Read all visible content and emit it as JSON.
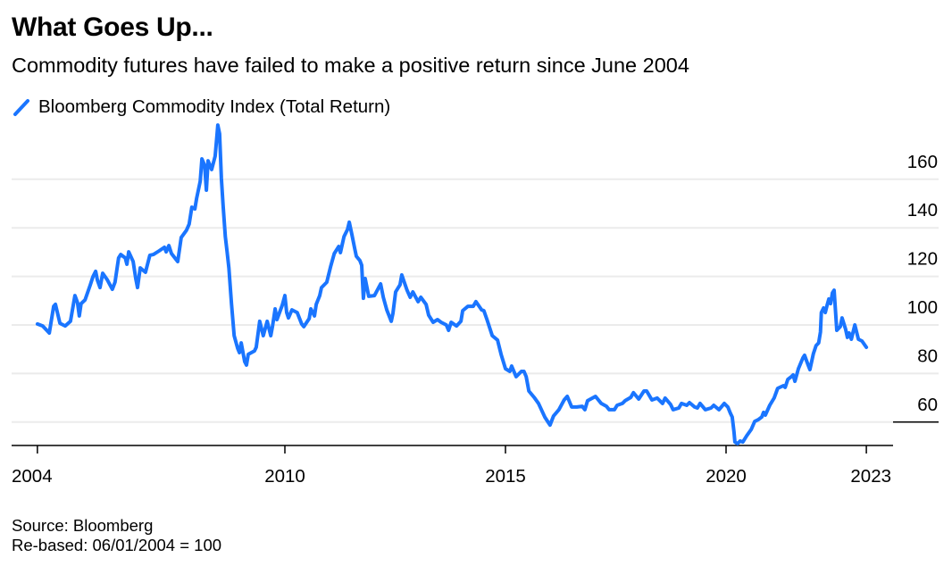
{
  "header": {
    "title": "What Goes Up...",
    "subtitle": "Commodity futures have failed to make a positive return since June 2004"
  },
  "footer": {
    "source": "Source: Bloomberg",
    "note": "Re-based: 06/01/2004 = 100"
  },
  "colors": {
    "series": "#1a75ff",
    "grid": "#ebebeb",
    "axis": "#000000"
  },
  "chart_data": {
    "type": "line",
    "title": "What Goes Up...",
    "subtitle": "Commodity futures have failed to make a positive return since June 2004",
    "xlabel": "",
    "ylabel": "",
    "legend": {
      "position": "top-left",
      "entries": [
        "Bloomberg Commodity Index (Total Return)"
      ]
    },
    "grid": true,
    "y_axis": {
      "side": "right",
      "ticks": [
        60,
        80,
        100,
        120,
        140,
        160
      ],
      "ylim": [
        50.8,
        182.3
      ]
    },
    "x_axis": {
      "ticks": [
        {
          "label": "2004",
          "value": 2004.39
        },
        {
          "label": "2010",
          "value": 2010.0
        },
        {
          "label": "2015",
          "value": 2015.0
        },
        {
          "label": "2020",
          "value": 2020.0
        },
        {
          "label": "2023",
          "value": 2023.18
        }
      ],
      "xlim": [
        2003.6,
        2023.6
      ]
    },
    "series": [
      {
        "name": "Bloomberg Commodity Index (Total Return)",
        "points": [
          [
            2004.39,
            100.4
          ],
          [
            2004.51,
            99.6
          ],
          [
            2004.66,
            96.7
          ],
          [
            2004.76,
            107.7
          ],
          [
            2004.8,
            108.5
          ],
          [
            2004.9,
            100.7
          ],
          [
            2005.02,
            99.6
          ],
          [
            2005.14,
            101.5
          ],
          [
            2005.24,
            112.1
          ],
          [
            2005.3,
            109.2
          ],
          [
            2005.34,
            103.7
          ],
          [
            2005.38,
            108.8
          ],
          [
            2005.47,
            110.3
          ],
          [
            2005.59,
            116.5
          ],
          [
            2005.65,
            119.9
          ],
          [
            2005.71,
            122.1
          ],
          [
            2005.75,
            118.4
          ],
          [
            2005.81,
            115.4
          ],
          [
            2005.87,
            121.3
          ],
          [
            2005.97,
            118.7
          ],
          [
            2006.09,
            114.7
          ],
          [
            2006.15,
            117.6
          ],
          [
            2006.23,
            127.6
          ],
          [
            2006.28,
            129.0
          ],
          [
            2006.38,
            127.6
          ],
          [
            2006.42,
            125.0
          ],
          [
            2006.46,
            130.1
          ],
          [
            2006.56,
            126.1
          ],
          [
            2006.62,
            119.1
          ],
          [
            2006.66,
            115.4
          ],
          [
            2006.72,
            123.5
          ],
          [
            2006.84,
            121.7
          ],
          [
            2006.94,
            128.7
          ],
          [
            2007.02,
            129.0
          ],
          [
            2007.15,
            130.5
          ],
          [
            2007.27,
            132.0
          ],
          [
            2007.31,
            130.1
          ],
          [
            2007.37,
            132.7
          ],
          [
            2007.43,
            129.4
          ],
          [
            2007.57,
            126.1
          ],
          [
            2007.61,
            130.9
          ],
          [
            2007.65,
            136.0
          ],
          [
            2007.77,
            139.0
          ],
          [
            2007.83,
            141.5
          ],
          [
            2007.89,
            148.5
          ],
          [
            2007.96,
            147.8
          ],
          [
            2008.0,
            152.2
          ],
          [
            2008.08,
            159.2
          ],
          [
            2008.12,
            168.4
          ],
          [
            2008.18,
            165.8
          ],
          [
            2008.22,
            155.5
          ],
          [
            2008.26,
            167.6
          ],
          [
            2008.34,
            164.0
          ],
          [
            2008.42,
            169.5
          ],
          [
            2008.46,
            177.9
          ],
          [
            2008.48,
            182.3
          ],
          [
            2008.52,
            178.7
          ],
          [
            2008.56,
            160.3
          ],
          [
            2008.6,
            149.3
          ],
          [
            2008.65,
            136.4
          ],
          [
            2008.69,
            130.1
          ],
          [
            2008.73,
            123.5
          ],
          [
            2008.79,
            108.8
          ],
          [
            2008.85,
            95.6
          ],
          [
            2008.93,
            90.4
          ],
          [
            2008.97,
            88.6
          ],
          [
            2009.01,
            92.6
          ],
          [
            2009.09,
            84.9
          ],
          [
            2009.13,
            83.5
          ],
          [
            2009.17,
            87.9
          ],
          [
            2009.31,
            89.3
          ],
          [
            2009.35,
            90.8
          ],
          [
            2009.43,
            101.5
          ],
          [
            2009.51,
            95.6
          ],
          [
            2009.6,
            101.5
          ],
          [
            2009.68,
            95.6
          ],
          [
            2009.72,
            99.6
          ],
          [
            2009.78,
            106.6
          ],
          [
            2009.82,
            102.2
          ],
          [
            2009.94,
            108.1
          ],
          [
            2010.0,
            112.1
          ],
          [
            2010.04,
            105.1
          ],
          [
            2010.08,
            102.9
          ],
          [
            2010.16,
            106.2
          ],
          [
            2010.28,
            105.1
          ],
          [
            2010.38,
            100.4
          ],
          [
            2010.43,
            99.3
          ],
          [
            2010.55,
            102.6
          ],
          [
            2010.59,
            106.6
          ],
          [
            2010.67,
            103.7
          ],
          [
            2010.71,
            108.5
          ],
          [
            2010.79,
            112.1
          ],
          [
            2010.83,
            115.4
          ],
          [
            2010.95,
            117.6
          ],
          [
            2011.04,
            124.3
          ],
          [
            2011.12,
            129.4
          ],
          [
            2011.22,
            132.3
          ],
          [
            2011.26,
            129.8
          ],
          [
            2011.34,
            136.4
          ],
          [
            2011.42,
            139.3
          ],
          [
            2011.46,
            142.3
          ],
          [
            2011.52,
            137.1
          ],
          [
            2011.58,
            131.6
          ],
          [
            2011.62,
            128.3
          ],
          [
            2011.7,
            126.5
          ],
          [
            2011.74,
            124.6
          ],
          [
            2011.78,
            111.0
          ],
          [
            2011.82,
            119.1
          ],
          [
            2011.9,
            111.8
          ],
          [
            2012.03,
            112.1
          ],
          [
            2012.17,
            116.9
          ],
          [
            2012.23,
            111.4
          ],
          [
            2012.31,
            106.2
          ],
          [
            2012.41,
            101.5
          ],
          [
            2012.45,
            104.8
          ],
          [
            2012.51,
            113.6
          ],
          [
            2012.61,
            116.5
          ],
          [
            2012.65,
            120.6
          ],
          [
            2012.77,
            114.3
          ],
          [
            2012.84,
            111.4
          ],
          [
            2012.9,
            113.6
          ],
          [
            2013.02,
            109.6
          ],
          [
            2013.08,
            111.4
          ],
          [
            2013.2,
            108.5
          ],
          [
            2013.26,
            104.0
          ],
          [
            2013.36,
            101.1
          ],
          [
            2013.46,
            102.2
          ],
          [
            2013.54,
            101.1
          ],
          [
            2013.66,
            100.0
          ],
          [
            2013.71,
            97.8
          ],
          [
            2013.77,
            101.1
          ],
          [
            2013.89,
            99.6
          ],
          [
            2013.99,
            101.5
          ],
          [
            2014.03,
            105.9
          ],
          [
            2014.15,
            107.7
          ],
          [
            2014.27,
            107.7
          ],
          [
            2014.33,
            109.6
          ],
          [
            2014.46,
            106.2
          ],
          [
            2014.51,
            105.9
          ],
          [
            2014.58,
            102.2
          ],
          [
            2014.7,
            95.6
          ],
          [
            2014.82,
            93.8
          ],
          [
            2014.9,
            87.9
          ],
          [
            2015.0,
            82.0
          ],
          [
            2015.1,
            80.9
          ],
          [
            2015.14,
            83.1
          ],
          [
            2015.24,
            78.7
          ],
          [
            2015.36,
            80.9
          ],
          [
            2015.42,
            80.9
          ],
          [
            2015.47,
            78.7
          ],
          [
            2015.53,
            72.8
          ],
          [
            2015.65,
            70.2
          ],
          [
            2015.75,
            67.7
          ],
          [
            2015.89,
            62.1
          ],
          [
            2015.97,
            59.9
          ],
          [
            2016.01,
            58.8
          ],
          [
            2016.09,
            62.5
          ],
          [
            2016.21,
            65.1
          ],
          [
            2016.33,
            69.1
          ],
          [
            2016.4,
            70.6
          ],
          [
            2016.5,
            66.2
          ],
          [
            2016.62,
            66.2
          ],
          [
            2016.74,
            66.5
          ],
          [
            2016.8,
            65.1
          ],
          [
            2016.86,
            68.8
          ],
          [
            2017.04,
            70.6
          ],
          [
            2017.17,
            67.7
          ],
          [
            2017.29,
            66.5
          ],
          [
            2017.35,
            65.1
          ],
          [
            2017.47,
            65.1
          ],
          [
            2017.53,
            66.9
          ],
          [
            2017.65,
            67.7
          ],
          [
            2017.71,
            68.8
          ],
          [
            2017.84,
            70.2
          ],
          [
            2017.9,
            72.1
          ],
          [
            2018.02,
            69.5
          ],
          [
            2018.14,
            72.8
          ],
          [
            2018.2,
            72.8
          ],
          [
            2018.32,
            69.1
          ],
          [
            2018.44,
            69.9
          ],
          [
            2018.56,
            67.7
          ],
          [
            2018.62,
            69.9
          ],
          [
            2018.74,
            67.3
          ],
          [
            2018.8,
            65.1
          ],
          [
            2018.93,
            65.8
          ],
          [
            2018.99,
            67.7
          ],
          [
            2019.11,
            66.9
          ],
          [
            2019.17,
            68.0
          ],
          [
            2019.29,
            66.2
          ],
          [
            2019.35,
            65.8
          ],
          [
            2019.41,
            67.7
          ],
          [
            2019.53,
            65.1
          ],
          [
            2019.66,
            65.8
          ],
          [
            2019.72,
            66.9
          ],
          [
            2019.84,
            65.1
          ],
          [
            2019.96,
            67.7
          ],
          [
            2020.04,
            66.2
          ],
          [
            2020.1,
            63.6
          ],
          [
            2020.14,
            62.1
          ],
          [
            2020.18,
            55.9
          ],
          [
            2020.2,
            51.8
          ],
          [
            2020.26,
            51.1
          ],
          [
            2020.32,
            52.2
          ],
          [
            2020.38,
            51.8
          ],
          [
            2020.47,
            54.4
          ],
          [
            2020.57,
            57.0
          ],
          [
            2020.65,
            60.3
          ],
          [
            2020.73,
            61.0
          ],
          [
            2020.81,
            62.1
          ],
          [
            2020.85,
            64.0
          ],
          [
            2020.89,
            62.9
          ],
          [
            2020.99,
            66.9
          ],
          [
            2021.09,
            69.9
          ],
          [
            2021.17,
            73.9
          ],
          [
            2021.3,
            75.0
          ],
          [
            2021.34,
            74.3
          ],
          [
            2021.4,
            77.6
          ],
          [
            2021.48,
            78.7
          ],
          [
            2021.52,
            79.4
          ],
          [
            2021.56,
            76.8
          ],
          [
            2021.64,
            82.0
          ],
          [
            2021.74,
            86.4
          ],
          [
            2021.78,
            87.5
          ],
          [
            2021.86,
            83.5
          ],
          [
            2021.9,
            81.6
          ],
          [
            2021.98,
            88.2
          ],
          [
            2022.04,
            91.5
          ],
          [
            2022.1,
            92.6
          ],
          [
            2022.14,
            97.1
          ],
          [
            2022.16,
            105.1
          ],
          [
            2022.21,
            107.0
          ],
          [
            2022.25,
            105.1
          ],
          [
            2022.29,
            108.1
          ],
          [
            2022.33,
            110.7
          ],
          [
            2022.37,
            108.8
          ],
          [
            2022.41,
            113.2
          ],
          [
            2022.45,
            114.3
          ],
          [
            2022.47,
            108.8
          ],
          [
            2022.51,
            97.8
          ],
          [
            2022.59,
            99.3
          ],
          [
            2022.63,
            102.9
          ],
          [
            2022.71,
            98.2
          ],
          [
            2022.75,
            94.9
          ],
          [
            2022.79,
            96.7
          ],
          [
            2022.84,
            94.1
          ],
          [
            2022.92,
            100.0
          ],
          [
            2023.0,
            94.1
          ],
          [
            2023.08,
            93.4
          ],
          [
            2023.18,
            90.8
          ]
        ]
      }
    ]
  }
}
